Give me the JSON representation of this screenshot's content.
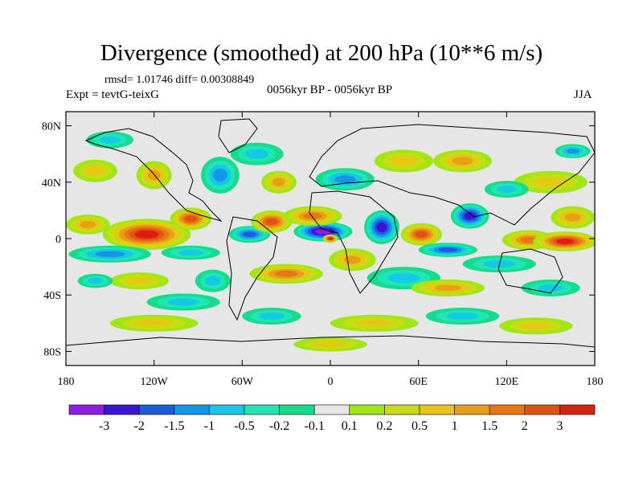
{
  "header": {
    "title": "Divergence (smoothed) at 200 hPa (10**6 m/s)",
    "stats": "rmsd= 1.01746 diff= 0.00308849",
    "expt": "Expt = tevtG-teixG",
    "period": "0056kyr BP - 0056kyr BP",
    "season": "JJA"
  },
  "chart_data": {
    "type": "heatmap",
    "title": "Divergence (smoothed) at 200 hPa (10**6 m/s)",
    "xlabel": "",
    "ylabel": "",
    "xlim": [
      -180,
      180
    ],
    "ylim": [
      -90,
      90
    ],
    "x_ticks": [
      {
        "value": -180,
        "label": "180"
      },
      {
        "value": -120,
        "label": "120W"
      },
      {
        "value": -60,
        "label": "60W"
      },
      {
        "value": 0,
        "label": "0"
      },
      {
        "value": 60,
        "label": "60E"
      },
      {
        "value": 120,
        "label": "120E"
      },
      {
        "value": 180,
        "label": "180"
      }
    ],
    "y_ticks": [
      {
        "value": 80,
        "label": "80N"
      },
      {
        "value": 40,
        "label": "40N"
      },
      {
        "value": 0,
        "label": "0"
      },
      {
        "value": -40,
        "label": "40S"
      },
      {
        "value": -80,
        "label": "80S"
      }
    ],
    "colorbar": {
      "colors": [
        "#8c1fe6",
        "#3c14d9",
        "#1f5ae0",
        "#1496e6",
        "#14c8e6",
        "#1ee6b4",
        "#14dc8c",
        "#e6e6e6",
        "#a0e614",
        "#c8dc14",
        "#e6c814",
        "#e6a014",
        "#e67814",
        "#e65014",
        "#dc1e14"
      ],
      "labels": [
        "-3",
        "-2",
        "-1.5",
        "-1",
        "-0.5",
        "-0.2",
        "-0.1",
        "0.1",
        "0.2",
        "0.5",
        "1",
        "1.5",
        "2",
        "3"
      ]
    },
    "blobs": [
      {
        "lon": -125,
        "lat": 3,
        "rx": 30,
        "ry": 11,
        "v": 3.2
      },
      {
        "lon": -95,
        "lat": 14,
        "rx": 14,
        "ry": 8,
        "v": 2.2
      },
      {
        "lon": -165,
        "lat": 10,
        "rx": 15,
        "ry": 7,
        "v": 1.2
      },
      {
        "lon": -150,
        "lat": -11,
        "rx": 28,
        "ry": 6,
        "v": -1.3
      },
      {
        "lon": -95,
        "lat": -10,
        "rx": 20,
        "ry": 5,
        "v": -0.8
      },
      {
        "lon": -55,
        "lat": 3,
        "rx": 14,
        "ry": 6,
        "v": -1.6
      },
      {
        "lon": -40,
        "lat": 12,
        "rx": 14,
        "ry": 8,
        "v": 2.2
      },
      {
        "lon": -5,
        "lat": 5,
        "rx": 20,
        "ry": 7,
        "v": -3.1
      },
      {
        "lon": 0,
        "lat": 0,
        "rx": 5,
        "ry": 3,
        "v": 3.2
      },
      {
        "lon": -12,
        "lat": 16,
        "rx": 20,
        "ry": 7,
        "v": 1.5
      },
      {
        "lon": 35,
        "lat": 8,
        "rx": 12,
        "ry": 12,
        "v": -2.0
      },
      {
        "lon": 62,
        "lat": 3,
        "rx": 14,
        "ry": 8,
        "v": 2.1
      },
      {
        "lon": 80,
        "lat": -8,
        "rx": 20,
        "ry": 5,
        "v": -1.5
      },
      {
        "lon": 95,
        "lat": 16,
        "rx": 13,
        "ry": 9,
        "v": -2.2
      },
      {
        "lon": 135,
        "lat": -1,
        "rx": 18,
        "ry": 7,
        "v": 1.8
      },
      {
        "lon": 160,
        "lat": -2,
        "rx": 22,
        "ry": 7,
        "v": 3.2
      },
      {
        "lon": 165,
        "lat": 15,
        "rx": 15,
        "ry": 8,
        "v": 1.2
      },
      {
        "lon": 115,
        "lat": -18,
        "rx": 25,
        "ry": 6,
        "v": -0.9
      },
      {
        "lon": -75,
        "lat": 45,
        "rx": 13,
        "ry": 13,
        "v": -1.2
      },
      {
        "lon": -120,
        "lat": 45,
        "rx": 12,
        "ry": 10,
        "v": 1.1
      },
      {
        "lon": -160,
        "lat": 48,
        "rx": 15,
        "ry": 8,
        "v": 0.8
      },
      {
        "lon": -150,
        "lat": 70,
        "rx": 16,
        "ry": 6,
        "v": -0.6
      },
      {
        "lon": -50,
        "lat": 60,
        "rx": 18,
        "ry": 8,
        "v": -0.8
      },
      {
        "lon": -35,
        "lat": 40,
        "rx": 12,
        "ry": 8,
        "v": 1.3
      },
      {
        "lon": 10,
        "lat": 42,
        "rx": 20,
        "ry": 8,
        "v": -1.1
      },
      {
        "lon": 50,
        "lat": 55,
        "rx": 20,
        "ry": 8,
        "v": 0.9
      },
      {
        "lon": 90,
        "lat": 55,
        "rx": 20,
        "ry": 8,
        "v": 1.1
      },
      {
        "lon": 150,
        "lat": 40,
        "rx": 25,
        "ry": 8,
        "v": 0.6
      },
      {
        "lon": 165,
        "lat": 62,
        "rx": 12,
        "ry": 5,
        "v": -1.2
      },
      {
        "lon": 120,
        "lat": 35,
        "rx": 15,
        "ry": 6,
        "v": -0.7
      },
      {
        "lon": -130,
        "lat": -30,
        "rx": 20,
        "ry": 6,
        "v": 0.9
      },
      {
        "lon": -160,
        "lat": -30,
        "rx": 12,
        "ry": 5,
        "v": -0.8
      },
      {
        "lon": -30,
        "lat": -25,
        "rx": 25,
        "ry": 7,
        "v": 1.7
      },
      {
        "lon": 15,
        "lat": -15,
        "rx": 16,
        "ry": 8,
        "v": 1.4
      },
      {
        "lon": 50,
        "lat": -28,
        "rx": 25,
        "ry": 8,
        "v": -0.9
      },
      {
        "lon": -80,
        "lat": -30,
        "rx": 12,
        "ry": 8,
        "v": -0.7
      },
      {
        "lon": 80,
        "lat": -35,
        "rx": 25,
        "ry": 6,
        "v": 1.0
      },
      {
        "lon": 150,
        "lat": -35,
        "rx": 20,
        "ry": 6,
        "v": -0.8
      },
      {
        "lon": -100,
        "lat": -45,
        "rx": 25,
        "ry": 6,
        "v": -0.6
      },
      {
        "lon": -120,
        "lat": -60,
        "rx": 30,
        "ry": 6,
        "v": 0.8
      },
      {
        "lon": -40,
        "lat": -55,
        "rx": 20,
        "ry": 6,
        "v": -0.7
      },
      {
        "lon": 30,
        "lat": -60,
        "rx": 30,
        "ry": 6,
        "v": 0.7
      },
      {
        "lon": 90,
        "lat": -55,
        "rx": 25,
        "ry": 6,
        "v": -0.6
      },
      {
        "lon": 140,
        "lat": -62,
        "rx": 25,
        "ry": 6,
        "v": 0.7
      },
      {
        "lon": 0,
        "lat": -75,
        "rx": 25,
        "ry": 5,
        "v": 0.5
      }
    ]
  }
}
